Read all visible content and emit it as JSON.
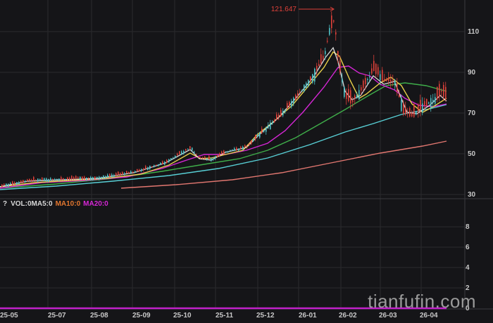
{
  "chart_data": {
    "type": "candlestick",
    "title": "",
    "max_marker": {
      "label": "121.647 →",
      "value": 121.647,
      "date": "26-01 (late)"
    },
    "price_panel": {
      "yaxis_ticks": [
        30,
        50,
        70,
        90,
        110
      ],
      "ylim": [
        26,
        124
      ],
      "grid": true,
      "series": [
        {
          "name": "Price (candles)",
          "colors": {
            "up": "#e0413a",
            "down": "#4fc1c6"
          },
          "approx_close_by_month": {
            "25-05": 32,
            "25-07": 36,
            "25-08": 38,
            "25-09": 41,
            "25-10": 50,
            "25-11": 50,
            "25-12": 62,
            "26-01": 95,
            "26-02": 82,
            "26-03": 80,
            "26-04": 78
          }
        },
        {
          "name": "MA5",
          "color": "#f3f3f3"
        },
        {
          "name": "MA10",
          "color": "#e8d04a"
        },
        {
          "name": "MA20",
          "color": "#d526d5"
        },
        {
          "name": "MA60",
          "color": "#3fae4a"
        },
        {
          "name": "MA120",
          "color": "#58d0d6"
        },
        {
          "name": "MA250",
          "color": "#e27770"
        }
      ]
    },
    "volume_panel": {
      "legend": [
        "VOL:0",
        "MA5:0",
        "MA10:0",
        "MA20:0"
      ],
      "yaxis_ticks": [
        0,
        2,
        4,
        6,
        8
      ],
      "ylim": [
        0,
        9.5
      ],
      "values": "all 0"
    },
    "x_tick_labels": [
      "25-05",
      "25-07",
      "25-08",
      "25-09",
      "25-10",
      "25-11",
      "25-12",
      "26-01",
      "26-02",
      "26-03",
      "26-04"
    ],
    "xlabel": "",
    "ylabel": "",
    "legend_position": "top-left of volume panel"
  },
  "price_axis": [
    "110",
    "90",
    "70",
    "50",
    "30"
  ],
  "volume_axis": [
    "8",
    "6",
    "4",
    "2",
    "0"
  ],
  "x_axis": [
    "25-05",
    "25-07",
    "25-08",
    "25-09",
    "25-10",
    "25-11",
    "25-12",
    "26-01",
    "26-02",
    "26-03",
    "26-04"
  ],
  "max_label": "121.647",
  "volume_legend": {
    "help": "?",
    "vol": "VOL:0MA5:0",
    "ma10": "MA10:0",
    "ma20": "MA20:0"
  },
  "watermark": "tianfufin.com",
  "colors": {
    "background": "#151518",
    "grid": "#2a2a2e",
    "up": "#e0413a",
    "down": "#4fc1c6",
    "label": "#c8c8c8"
  }
}
